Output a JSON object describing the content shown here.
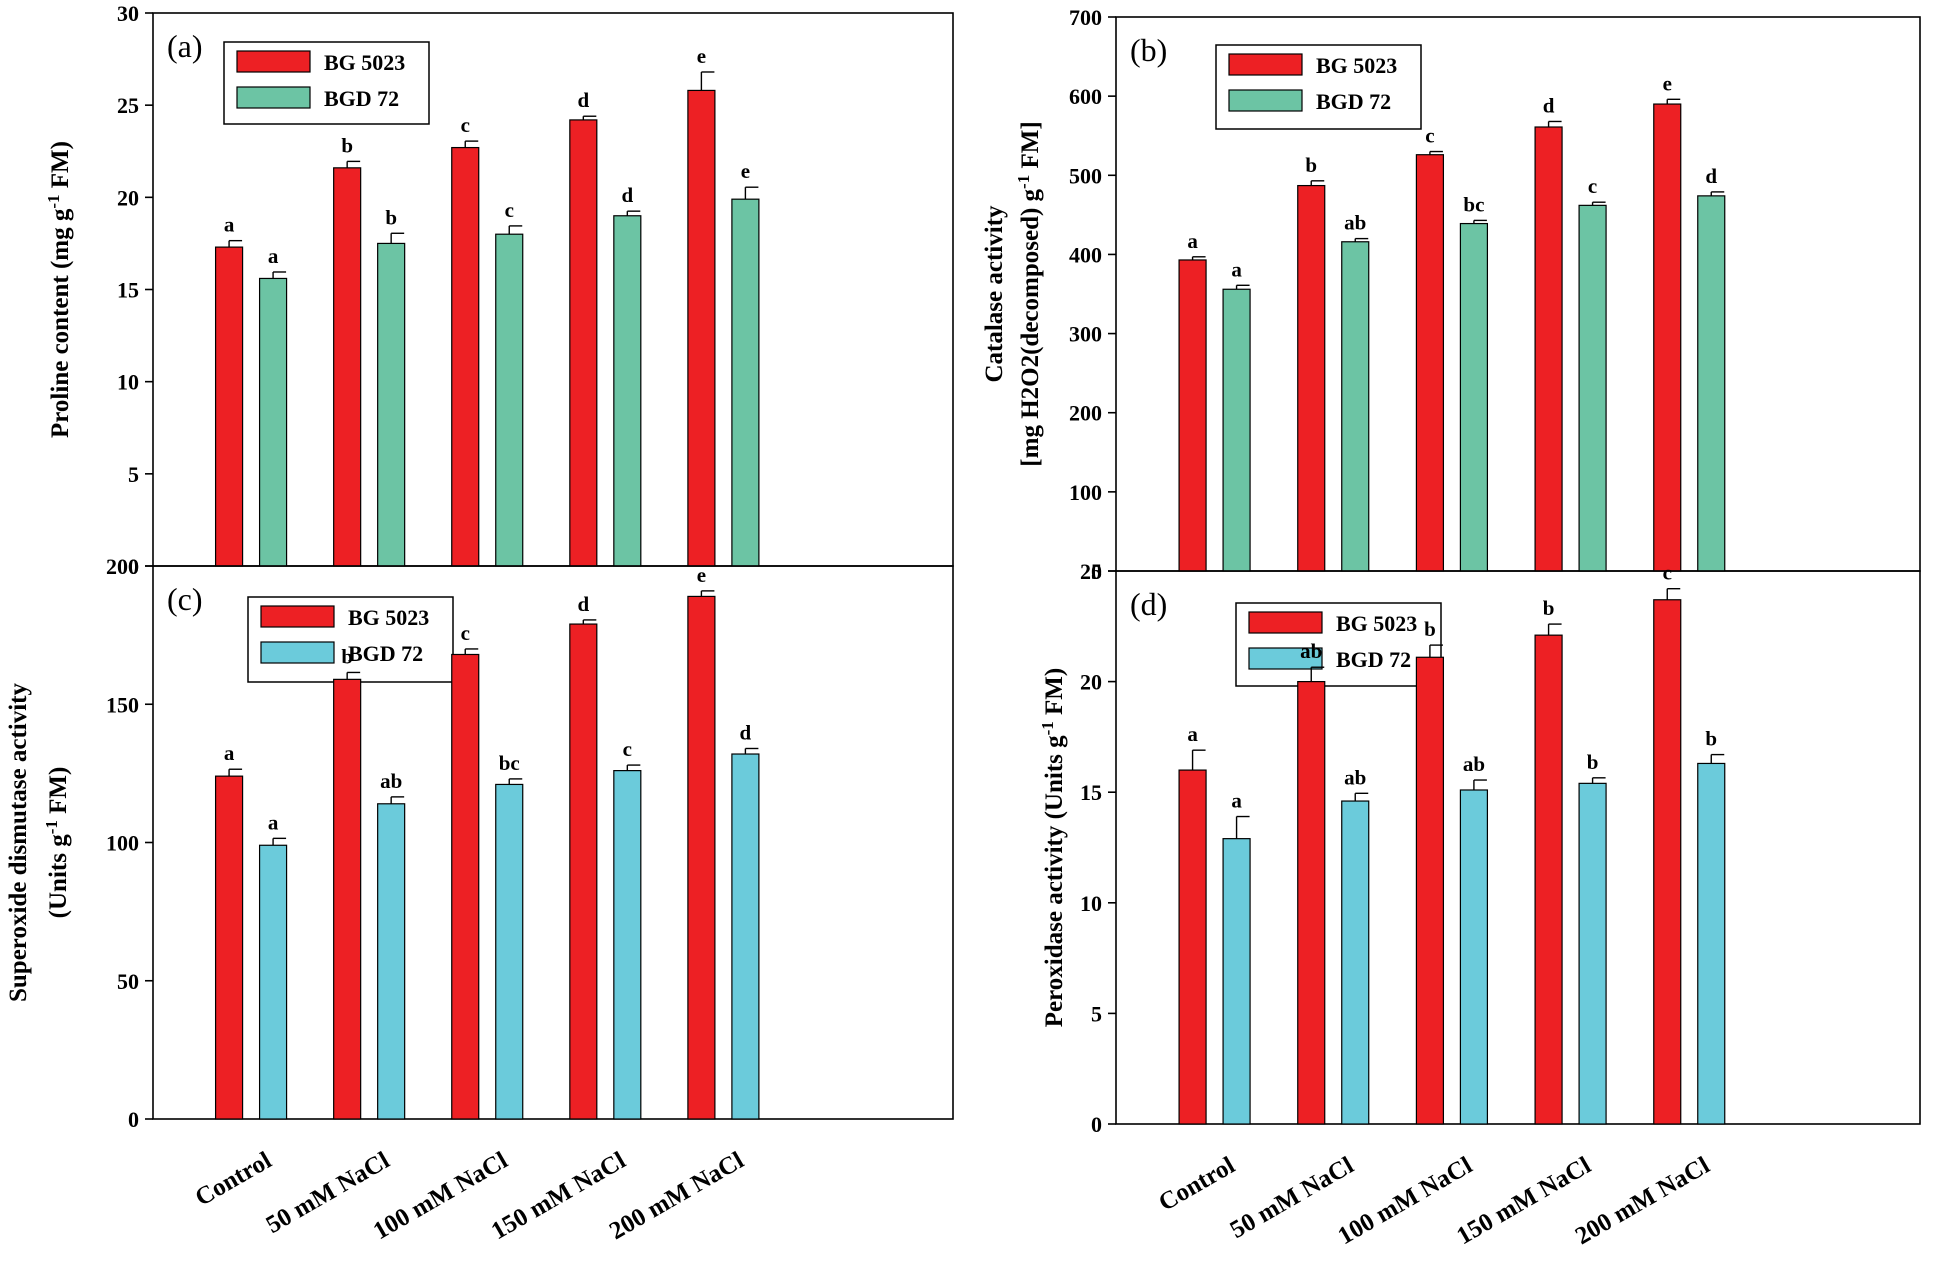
{
  "chart_data": [
    {
      "type": "bar",
      "panel_label": "(a)",
      "ylabel": "Proline content (mg g",
      "ylabel_sup": "-1",
      "ylabel_tail": " FM)",
      "ylim": [
        0,
        30
      ],
      "yticks": [
        0,
        5,
        10,
        15,
        20,
        25,
        30
      ],
      "categories": [
        "Control",
        "50 mM NaCl",
        "100 mM NaCl",
        "150 mM NaCl",
        "200 mM NaCl"
      ],
      "show_category_labels": false,
      "legend": {
        "position": "top-left"
      },
      "series": [
        {
          "name": "BG 5023",
          "color": "#ED2024",
          "values": [
            17.3,
            21.6,
            22.7,
            24.2,
            25.8
          ],
          "errors": [
            0.35,
            0.35,
            0.35,
            0.2,
            1.0
          ],
          "letters": [
            "a",
            "b",
            "c",
            "d",
            "e"
          ]
        },
        {
          "name": "BGD 72",
          "color": "#6CC4A4",
          "values": [
            15.6,
            17.5,
            18.0,
            19.0,
            19.9
          ],
          "errors": [
            0.35,
            0.55,
            0.45,
            0.25,
            0.65
          ],
          "letters": [
            "a",
            "b",
            "c",
            "d",
            "e"
          ]
        }
      ]
    },
    {
      "type": "bar",
      "panel_label": "(b)",
      "ylabel": "Catalase activity",
      "ylabel2": "[mg H2O2(decomposed) g",
      "ylabel2_sup": "-1",
      "ylabel2_tail": " FM]",
      "ylim": [
        0,
        700
      ],
      "yticks": [
        0,
        100,
        200,
        300,
        400,
        500,
        600,
        700
      ],
      "categories": [
        "Control",
        "50 mM NaCl",
        "100 mM NaCl",
        "150 mM NaCl",
        "200 mM NaCl"
      ],
      "show_category_labels": false,
      "legend": {
        "position": "top-left"
      },
      "series": [
        {
          "name": "BG 5023",
          "color": "#ED2024",
          "values": [
            393,
            487,
            526,
            561,
            590
          ],
          "errors": [
            4,
            6,
            4,
            7,
            6
          ],
          "letters": [
            "a",
            "b",
            "c",
            "d",
            "e"
          ]
        },
        {
          "name": "BGD 72",
          "color": "#6CC4A4",
          "values": [
            356,
            416,
            439,
            462,
            474
          ],
          "errors": [
            5,
            4,
            4,
            4,
            5
          ],
          "letters": [
            "a",
            "ab",
            "bc",
            "c",
            "d"
          ]
        }
      ]
    },
    {
      "type": "bar",
      "panel_label": "(c)",
      "ylabel": "Superoxide dismutase activity",
      "ylabel2": "(Units g",
      "ylabel2_sup": "-1",
      "ylabel2_tail": " FM)",
      "ylim": [
        0,
        200
      ],
      "yticks": [
        0,
        50,
        100,
        150,
        200
      ],
      "categories": [
        "Control",
        "50 mM NaCl",
        "100 mM NaCl",
        "150 mM NaCl",
        "200 mM NaCl"
      ],
      "show_category_labels": true,
      "legend": {
        "position": "top-left"
      },
      "series": [
        {
          "name": "BG 5023",
          "color": "#ED2024",
          "values": [
            124,
            159,
            168,
            179,
            189
          ],
          "errors": [
            2.5,
            2.5,
            2,
            1.5,
            2
          ],
          "letters": [
            "a",
            "b",
            "c",
            "d",
            "e"
          ]
        },
        {
          "name": "BGD 72",
          "color": "#6BCBDB",
          "values": [
            99,
            114,
            121,
            126,
            132
          ],
          "errors": [
            2.5,
            2.5,
            2,
            2,
            2
          ],
          "letters": [
            "a",
            "ab",
            "bc",
            "c",
            "d"
          ]
        }
      ]
    },
    {
      "type": "bar",
      "panel_label": "(d)",
      "ylabel": "Peroxidase activity (Units g",
      "ylabel_sup": "-1",
      "ylabel_tail": " FM)",
      "ylim": [
        0,
        25
      ],
      "yticks": [
        0,
        5,
        10,
        15,
        20,
        25
      ],
      "categories": [
        "Control",
        "50 mM NaCl",
        "100 mM NaCl",
        "150 mM NaCl",
        "200 mM NaCl"
      ],
      "show_category_labels": true,
      "legend": {
        "position": "top-left"
      },
      "series": [
        {
          "name": "BG 5023",
          "color": "#ED2024",
          "values": [
            16.0,
            20.0,
            21.1,
            22.1,
            23.7
          ],
          "errors": [
            0.9,
            0.65,
            0.55,
            0.5,
            0.5
          ],
          "letters": [
            "a",
            "ab",
            "b",
            "b",
            "c"
          ]
        },
        {
          "name": "BGD 72",
          "color": "#6BCBDB",
          "values": [
            12.9,
            14.6,
            15.1,
            15.4,
            16.3
          ],
          "errors": [
            1.0,
            0.35,
            0.45,
            0.25,
            0.4
          ],
          "letters": [
            "a",
            "ab",
            "ab",
            "b",
            "b"
          ]
        }
      ]
    }
  ]
}
